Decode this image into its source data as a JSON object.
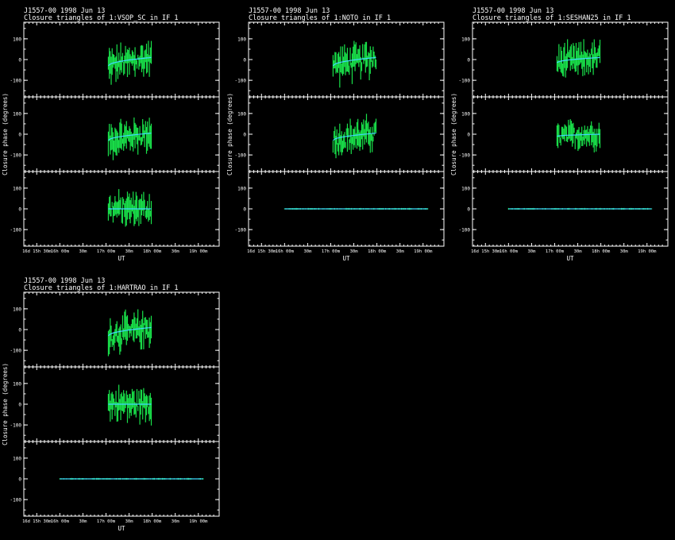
{
  "chart_data": [
    {
      "type": "scatter",
      "title": "J1557-00  1998 Jun 13",
      "subtitle": "Closure triangles of 1:VSOP_SC in IF 1",
      "xlabel": "UT",
      "ylabel": "Closure phase  (degrees)",
      "x_tick_labels": [
        "16d 15h 30m",
        "16h 00m",
        "30m",
        "17h 00m",
        "30m",
        "18h 00m",
        "30m",
        "19h 00m"
      ],
      "y_tick_labels": [
        "-100",
        "0",
        "100"
      ],
      "ylim": [
        -180,
        180
      ],
      "grid": false,
      "panels": [
        {
          "name": "",
          "kind": "scatter",
          "start": 17.05,
          "end": 17.98,
          "amp": 90,
          "trend": [
            -30,
            10
          ]
        },
        {
          "name": "",
          "kind": "scatter",
          "start": 17.05,
          "end": 17.98,
          "amp": 85,
          "trend": [
            -30,
            5
          ]
        },
        {
          "name": "",
          "kind": "scatter",
          "start": 17.05,
          "end": 17.98,
          "amp": 80,
          "trend": [
            0,
            0
          ]
        }
      ]
    },
    {
      "type": "scatter",
      "title": "J1557-00  1998 Jun 13",
      "subtitle": "Closure triangles of 1:NOTO in IF 1",
      "xlabel": "UT",
      "ylabel": "Closure phase  (degrees)",
      "x_tick_labels": [
        "16d 15h 30m",
        "16h 00m",
        "30m",
        "17h 00m",
        "30m",
        "18h 00m",
        "30m",
        "19h 00m"
      ],
      "y_tick_labels": [
        "-100",
        "0",
        "100"
      ],
      "ylim": [
        -180,
        180
      ],
      "grid": false,
      "panels": [
        {
          "name": "",
          "kind": "scatter",
          "start": 17.05,
          "end": 17.98,
          "amp": 90,
          "trend": [
            -30,
            10
          ]
        },
        {
          "name": "",
          "kind": "scatter",
          "start": 17.05,
          "end": 17.98,
          "amp": 85,
          "trend": [
            -30,
            5
          ]
        },
        {
          "name": "",
          "kind": "flat",
          "start": 16.0,
          "end": 19.1
        }
      ]
    },
    {
      "type": "scatter",
      "title": "J1557-00  1998 Jun 13",
      "subtitle": "Closure triangles of 1:SESHAN25 in IF 1",
      "xlabel": "UT",
      "ylabel": "Closure phase  (degrees)",
      "x_tick_labels": [
        "16d 15h 30m",
        "16h 00m",
        "30m",
        "17h 00m",
        "30m",
        "18h 00m",
        "30m",
        "19h 00m"
      ],
      "y_tick_labels": [
        "-100",
        "0",
        "100"
      ],
      "ylim": [
        -180,
        180
      ],
      "grid": false,
      "panels": [
        {
          "name": "",
          "kind": "scatter",
          "start": 17.05,
          "end": 17.98,
          "amp": 85,
          "trend": [
            -15,
            10
          ]
        },
        {
          "name": "",
          "kind": "scatter",
          "start": 17.05,
          "end": 17.98,
          "amp": 70,
          "trend": [
            -10,
            0
          ]
        },
        {
          "name": "",
          "kind": "flat",
          "start": 16.0,
          "end": 19.1
        }
      ]
    },
    {
      "type": "scatter",
      "title": "J1557-00  1998 Jun 13",
      "subtitle": "Closure triangles of 1:HARTRAO in IF 1",
      "xlabel": "UT",
      "ylabel": "Closure phase  (degrees)",
      "x_tick_labels": [
        "16d 15h 30m",
        "16h 00m",
        "30m",
        "17h 00m",
        "30m",
        "18h 00m",
        "30m",
        "19h 00m"
      ],
      "y_tick_labels": [
        "-100",
        "0",
        "100"
      ],
      "ylim": [
        -180,
        180
      ],
      "grid": false,
      "panels": [
        {
          "name": "",
          "kind": "scatter",
          "start": 17.05,
          "end": 17.98,
          "amp": 90,
          "trend": [
            -30,
            10
          ]
        },
        {
          "name": "",
          "kind": "scatter",
          "start": 17.05,
          "end": 17.98,
          "amp": 85,
          "trend": [
            0,
            0
          ]
        },
        {
          "name": "",
          "kind": "flat",
          "start": 16.0,
          "end": 19.1
        }
      ]
    }
  ],
  "colors": {
    "background": "#000000",
    "data": "#19e04a",
    "fit": "#3fd8ff",
    "axes": "#ffffff"
  }
}
